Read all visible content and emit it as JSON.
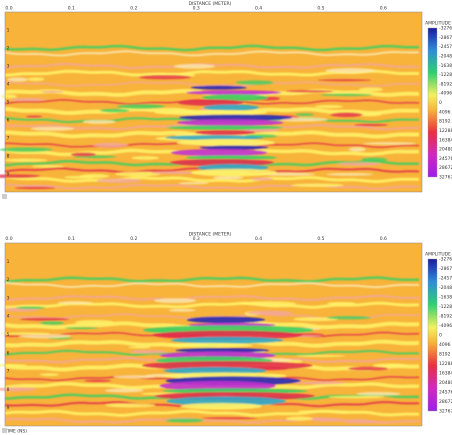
{
  "panels": [
    {
      "x_axis_title": "DISTANCE (METER)",
      "x_ticks": [
        "0.0",
        "0.1",
        "0.2",
        "0.3",
        "0.4",
        "0.5",
        "0.6"
      ],
      "y_ticks": [
        1,
        2,
        3,
        4,
        5,
        6,
        7,
        8,
        9
      ],
      "colorbar_title": "AMPLITUDE",
      "colorbar_labels": [
        -32768,
        -28672,
        -24576,
        -20480,
        -16384,
        -12288,
        -8192,
        -4096,
        0,
        4096,
        8192,
        12288,
        16384,
        20480,
        24576,
        28672,
        32767
      ]
    },
    {
      "x_axis_title": "DISTANCE (METER)",
      "x_ticks": [
        "0.0",
        "0.1",
        "0.2",
        "0.3",
        "0.4",
        "0.5",
        "0.6"
      ],
      "y_ticks": [
        1,
        2,
        3,
        4,
        5,
        6,
        7,
        8,
        9
      ],
      "colorbar_title": "AMPLITUDE",
      "colorbar_labels": [
        -32768,
        -28672,
        -24576,
        -20480,
        -16384,
        -12288,
        -8192,
        -4096,
        0,
        4096,
        8192,
        12288,
        16384,
        20480,
        24576,
        28672,
        32767
      ]
    }
  ],
  "footer": "TIME (NS)"
}
